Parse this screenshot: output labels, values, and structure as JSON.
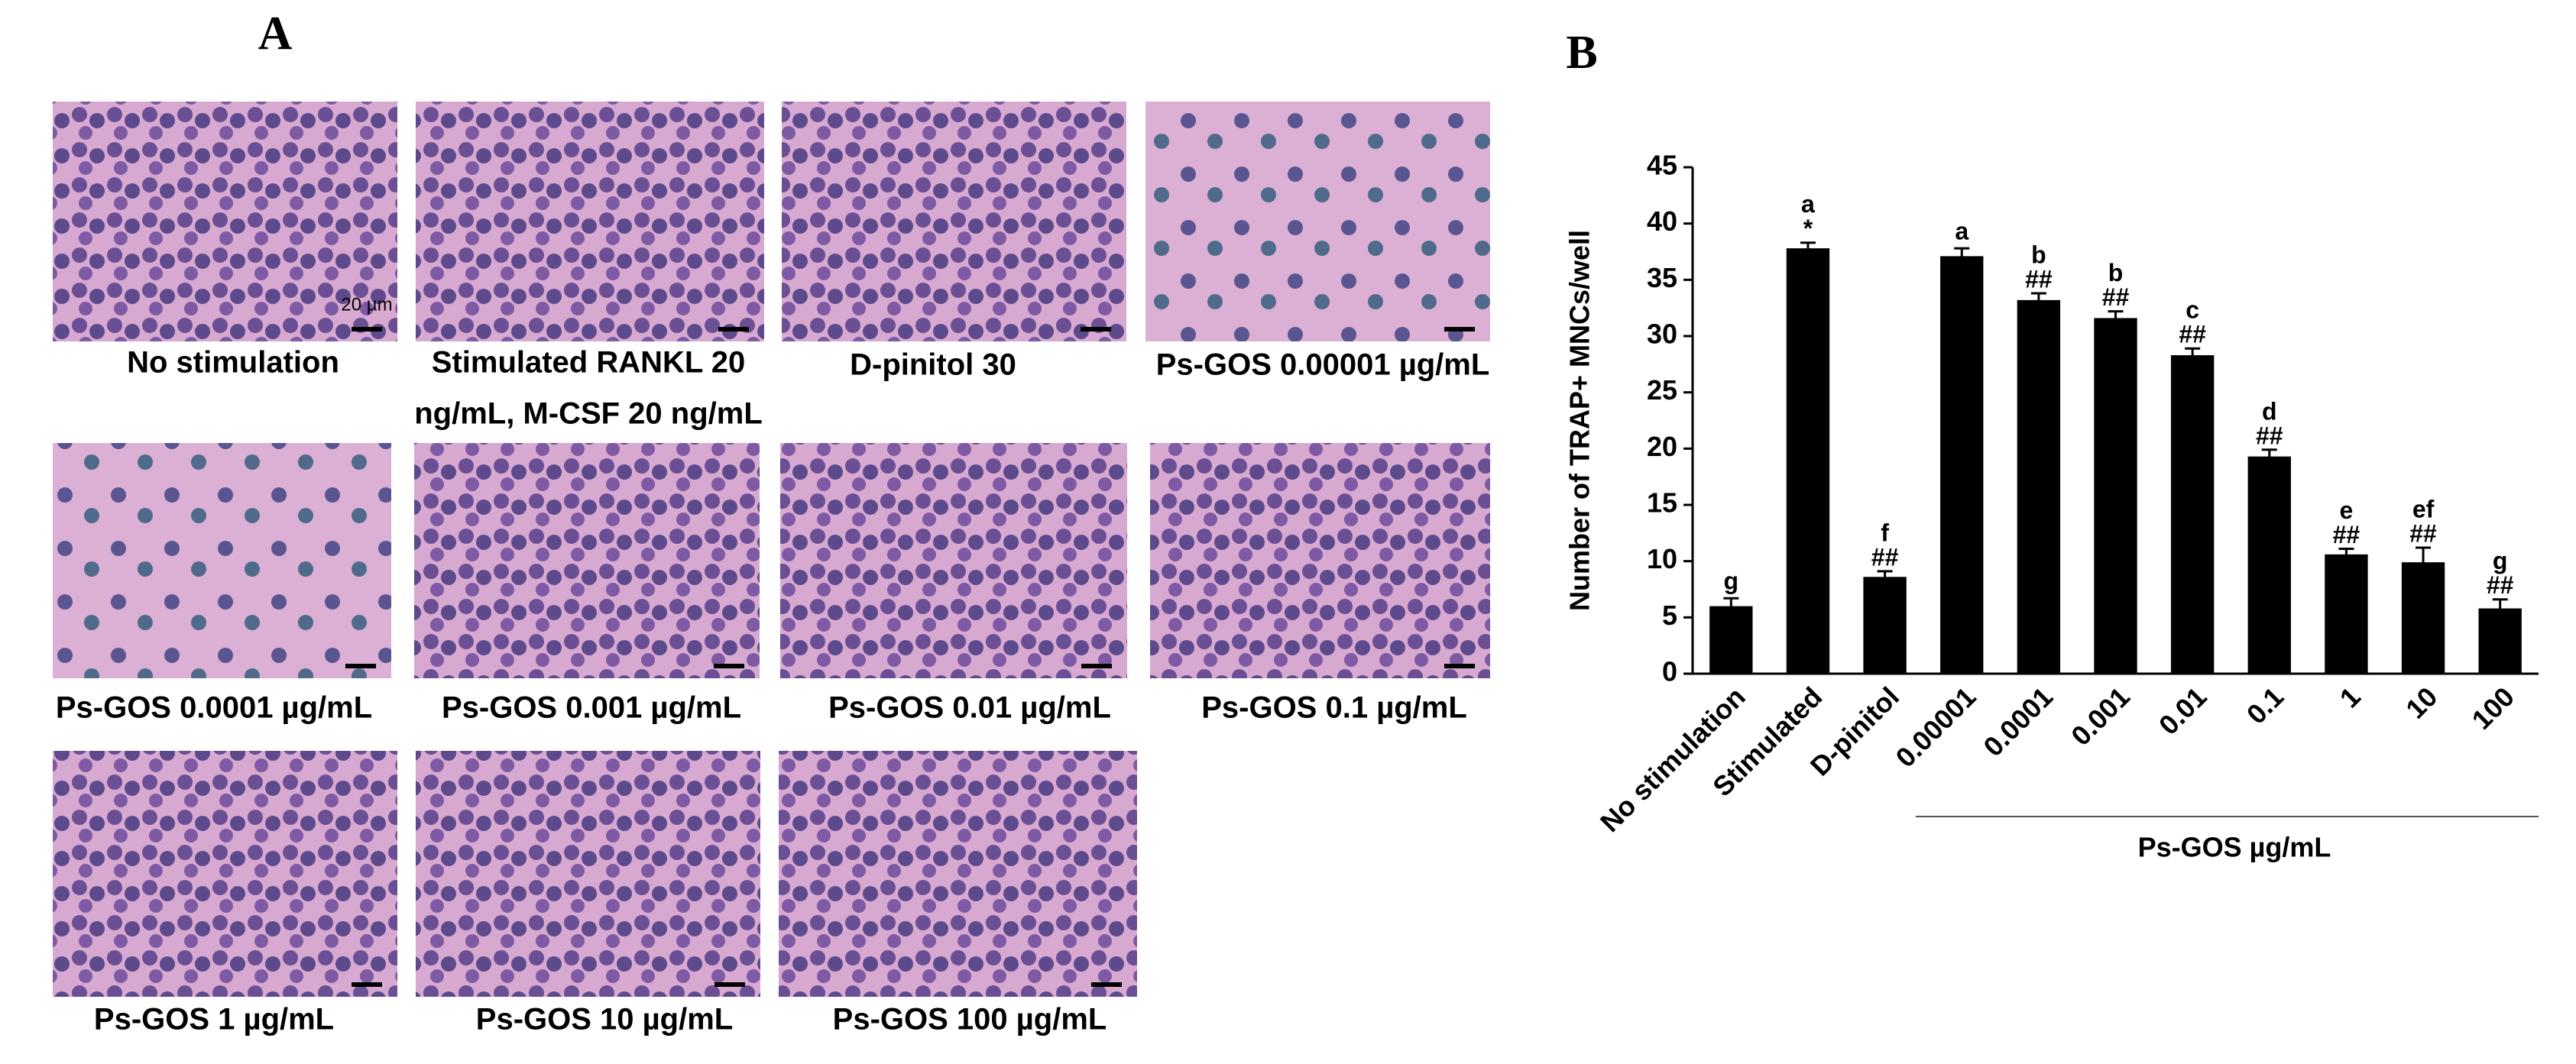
{
  "panel_a": {
    "label": "A",
    "scale_bar_label": "20 µm",
    "images": [
      {
        "caption": [
          "No stimulation"
        ]
      },
      {
        "caption": [
          "Stimulated RANKL 20",
          "ng/mL, M-CSF 20 ng/mL"
        ]
      },
      {
        "caption": [
          "D-pinitol 30"
        ]
      },
      {
        "caption": [
          "Ps-GOS 0.00001 µg/mL"
        ]
      },
      {
        "caption": [
          "Ps-GOS 0.0001 µg/mL"
        ]
      },
      {
        "caption": [
          "Ps-GOS 0.001 µg/mL"
        ]
      },
      {
        "caption": [
          "Ps-GOS 0.01 µg/mL"
        ]
      },
      {
        "caption": [
          "Ps-GOS 0.1 µg/mL"
        ]
      },
      {
        "caption": [
          "Ps-GOS 1 µg/mL"
        ]
      },
      {
        "caption": [
          "Ps-GOS 10 µg/mL"
        ]
      },
      {
        "caption": [
          "Ps-GOS 100 µg/mL"
        ]
      }
    ]
  },
  "panel_b": {
    "label": "B"
  },
  "chart_data": {
    "type": "bar",
    "ylabel": "Number of TRAP+ MNCs/well",
    "categories": [
      "No stimulation",
      "Stimulated",
      "D-pinitol",
      "0.00001",
      "0.0001",
      "0.001",
      "0.01",
      "0.1",
      "1",
      "10",
      "100"
    ],
    "values": [
      6,
      37.8,
      8.6,
      37.1,
      33.2,
      31.6,
      28.3,
      19.3,
      10.6,
      9.9,
      5.8
    ],
    "errors": [
      0.7,
      0.5,
      0.5,
      0.7,
      0.6,
      0.6,
      0.6,
      0.6,
      0.5,
      1.3,
      0.8
    ],
    "letters": [
      "g",
      "a",
      "f",
      "a",
      "b",
      "b",
      "c",
      "d",
      "e",
      "ef",
      "g"
    ],
    "significance": [
      null,
      "*",
      "##",
      null,
      "##",
      "##",
      "##",
      "##",
      "##",
      "##",
      "##"
    ],
    "group_label": "Ps-GOS µg/mL",
    "group_range": [
      3,
      10
    ],
    "color": "#000000",
    "ylim": [
      0,
      45
    ],
    "yticks": [
      0,
      5,
      10,
      15,
      20,
      25,
      30,
      35,
      40,
      45
    ],
    "grid": false
  }
}
